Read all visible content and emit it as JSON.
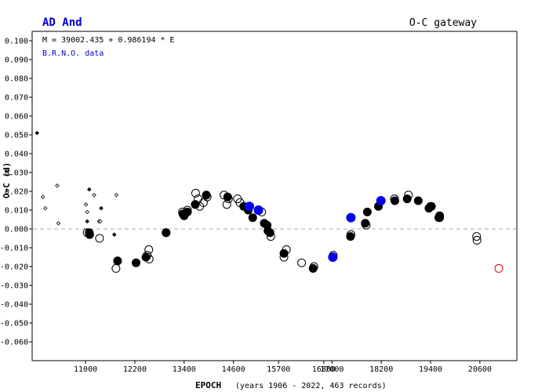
{
  "header": {
    "star_name": "AD And",
    "gateway_label": "O-C gateway"
  },
  "colors": {
    "star_name": "#0000cc",
    "note": "#0000cc",
    "blue_points": "#0000ee",
    "red_point": "#dd0000",
    "zero_line": "#aaaaaa"
  },
  "chart_data": {
    "type": "scatter",
    "title": "AD And",
    "ephemeris": "M = 39002.435 + 0.986194 * E",
    "data_note": "B.R.N.O. data",
    "xlabel": "EPOCH",
    "xlabel_note": "(years 1906 - 2022, 463 records)",
    "ylabel": "O-C (d)",
    "xlim": [
      9700,
      21500
    ],
    "ylim": [
      -0.07,
      0.105
    ],
    "x_ticks": [
      11000,
      12200,
      13400,
      14600,
      15700,
      16800,
      17000,
      18200,
      19400,
      20600
    ],
    "x_tick_labels": [
      "11000",
      "12200",
      "13400",
      "14600",
      "15700",
      "16800",
      "17000",
      "18200",
      "19400",
      "20600"
    ],
    "y_ticks": [
      0.1,
      0.09,
      0.08,
      0.07,
      0.06,
      0.05,
      0.04,
      0.03,
      0.02,
      0.01,
      0.0,
      -0.01,
      -0.02,
      -0.03,
      -0.04,
      -0.05,
      -0.06
    ],
    "y_tick_labels": [
      "0.100",
      "0.090",
      "0.080",
      "0.070",
      "0.060",
      "0.050",
      "0.040",
      "0.030",
      "0.020",
      "0.010",
      "0.000",
      "-0.010",
      "-0.020",
      "-0.030",
      "-0.040",
      "-0.050",
      "-0.060"
    ],
    "zero_line": 0.0,
    "series": [
      {
        "name": "visual primary (small filled)",
        "marker": "small-filled-diamond",
        "x": [
          9820,
          11090,
          11040,
          11380,
          11700
        ],
        "y": [
          0.051,
          0.021,
          0.004,
          0.011,
          -0.003
        ]
      },
      {
        "name": "visual secondary (small open)",
        "marker": "small-open-diamond",
        "x": [
          9960,
          10020,
          10310,
          10340,
          11010,
          11040,
          11210,
          11330,
          11360,
          11750
        ],
        "y": [
          0.017,
          0.011,
          0.023,
          0.003,
          0.013,
          0.009,
          0.018,
          0.004,
          0.004,
          0.018
        ]
      },
      {
        "name": "CCD/pe primary (filled circle)",
        "marker": "filled-circle",
        "x": [
          11090,
          11100,
          11780,
          12230,
          12470,
          12960,
          13370,
          13400,
          13480,
          13670,
          13940,
          14460,
          14850,
          14960,
          15070,
          15350,
          15420,
          15440,
          15490,
          15830,
          16540,
          17450,
          17810,
          17860,
          18130,
          18530,
          18830,
          19100,
          19360,
          19420,
          19600,
          19620
        ],
        "y": [
          -0.002,
          -0.003,
          -0.017,
          -0.018,
          -0.015,
          -0.002,
          0.008,
          0.007,
          0.009,
          0.013,
          0.018,
          0.017,
          0.012,
          0.01,
          0.006,
          0.003,
          0.002,
          -0.001,
          -0.002,
          -0.013,
          -0.021,
          -0.004,
          0.003,
          0.009,
          0.012,
          0.015,
          0.016,
          0.015,
          0.011,
          0.012,
          0.006,
          0.007
        ],
        "count": 32
      },
      {
        "name": "CCD/pe secondary (open circle)",
        "marker": "open-circle",
        "x": [
          11040,
          11340,
          11740,
          12500,
          12540,
          12550,
          12960,
          13360,
          13480,
          13680,
          13740,
          13780,
          13870,
          13960,
          14370,
          14440,
          14480,
          14700,
          14760,
          15290,
          15510,
          15830,
          15890,
          16260,
          16560,
          17030,
          17460,
          17830,
          18520,
          18860,
          19400,
          19620,
          20520,
          20530
        ],
        "y": [
          -0.002,
          -0.005,
          -0.021,
          -0.014,
          -0.011,
          -0.016,
          -0.002,
          0.009,
          0.01,
          0.019,
          0.016,
          0.012,
          0.014,
          0.017,
          0.018,
          0.013,
          0.016,
          0.016,
          0.014,
          0.009,
          -0.004,
          -0.015,
          -0.011,
          -0.018,
          -0.02,
          -0.014,
          -0.003,
          0.002,
          0.016,
          0.018,
          0.012,
          0.006,
          -0.004,
          -0.006
        ],
        "count": 34
      },
      {
        "name": "B.R.N.O. data",
        "marker": "blue-filled-circle",
        "x": [
          14990,
          15210,
          17020,
          17460,
          18190
        ],
        "y": [
          0.012,
          0.01,
          -0.015,
          0.006,
          0.015
        ]
      },
      {
        "name": "prediction",
        "marker": "red-open-circle",
        "x": [
          21060
        ],
        "y": [
          -0.021
        ]
      }
    ]
  }
}
